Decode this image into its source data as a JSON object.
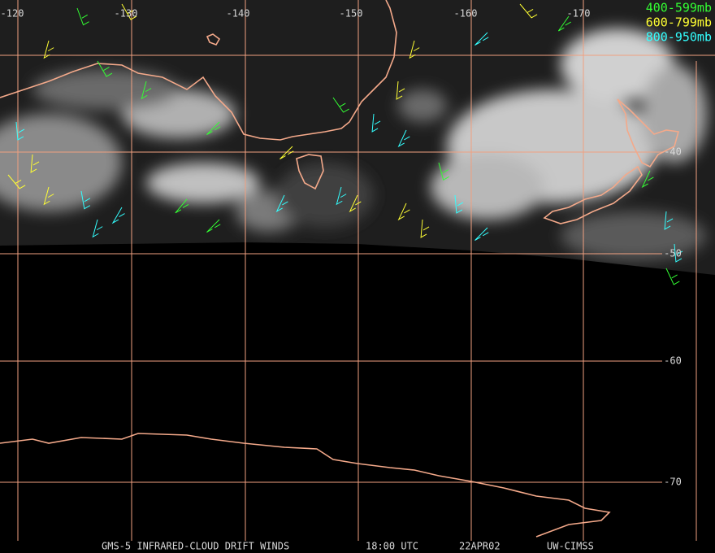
{
  "map": {
    "longitude_labels": [
      "-120",
      "-130",
      "-140",
      "-150",
      "-160",
      "-170"
    ],
    "latitude_labels": [
      "-40",
      "-50",
      "-60",
      "-70"
    ],
    "legend": [
      {
        "label": "400-599mb",
        "color": "#33ff33"
      },
      {
        "label": "600-799mb",
        "color": "#ffff33"
      },
      {
        "label": "800-950mb",
        "color": "#33ffff"
      }
    ],
    "footer": [
      "GMS-5 INFRARED-CLOUD DRIFT WINDS",
      "18:00 UTC",
      "22APR02",
      "UW-CIMSS"
    ]
  }
}
